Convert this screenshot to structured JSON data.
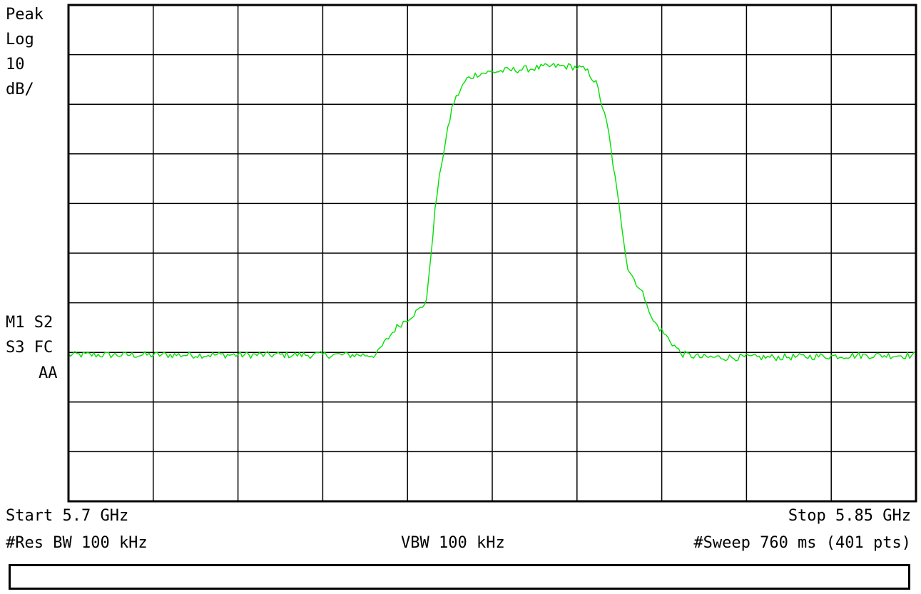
{
  "left_labels": [
    "Peak",
    "Log",
    "10",
    "dB/"
  ],
  "marker_labels": [
    "M1 S2",
    "S3 FC",
    "AA"
  ],
  "footer": {
    "start": "Start 5.7 GHz",
    "stop": "Stop 5.85 GHz",
    "res_bw": "#Res BW 100 kHz",
    "vbw": "VBW 100 kHz",
    "sweep": "#Sweep 760 ms (401 pts)"
  },
  "colors": {
    "trace": "#00e000",
    "grid": "#000000",
    "background": "#ffffff"
  },
  "chart_data": {
    "type": "line",
    "x_unit": "GHz",
    "y_unit": "dB",
    "xlim": [
      5.7,
      5.85
    ],
    "ylim": [
      -100,
      0
    ],
    "grid": true,
    "divisions": {
      "x": 10,
      "y": 10,
      "db_per_div": 10
    },
    "series": [
      {
        "points_count": 401,
        "x": [
          5.7,
          5.73,
          5.75,
          5.75,
          5.7546,
          5.755,
          5.758,
          5.7625,
          5.7635,
          5.764,
          5.765,
          5.766,
          5.768,
          5.7704,
          5.7725,
          5.7775,
          5.782,
          5.786,
          5.789,
          5.7906,
          5.792,
          5.7935,
          5.7955,
          5.7965,
          5.799,
          5.8025,
          5.803,
          5.806,
          5.8085,
          5.812,
          5.825,
          5.84,
          5.85
        ],
        "y": [
          -70.5,
          -70.5,
          -70.5,
          -70.5,
          -70.5,
          -69.5,
          -65,
          -61,
          -59,
          -52,
          -40,
          -32,
          -20,
          -15,
          -13.8,
          -13.2,
          -12.8,
          -12.3,
          -12.4,
          -12.7,
          -13.5,
          -16,
          -25,
          -33,
          -53,
          -60,
          -63,
          -67,
          -70.3,
          -71,
          -71,
          -70.6,
          -70.6
        ]
      }
    ]
  }
}
